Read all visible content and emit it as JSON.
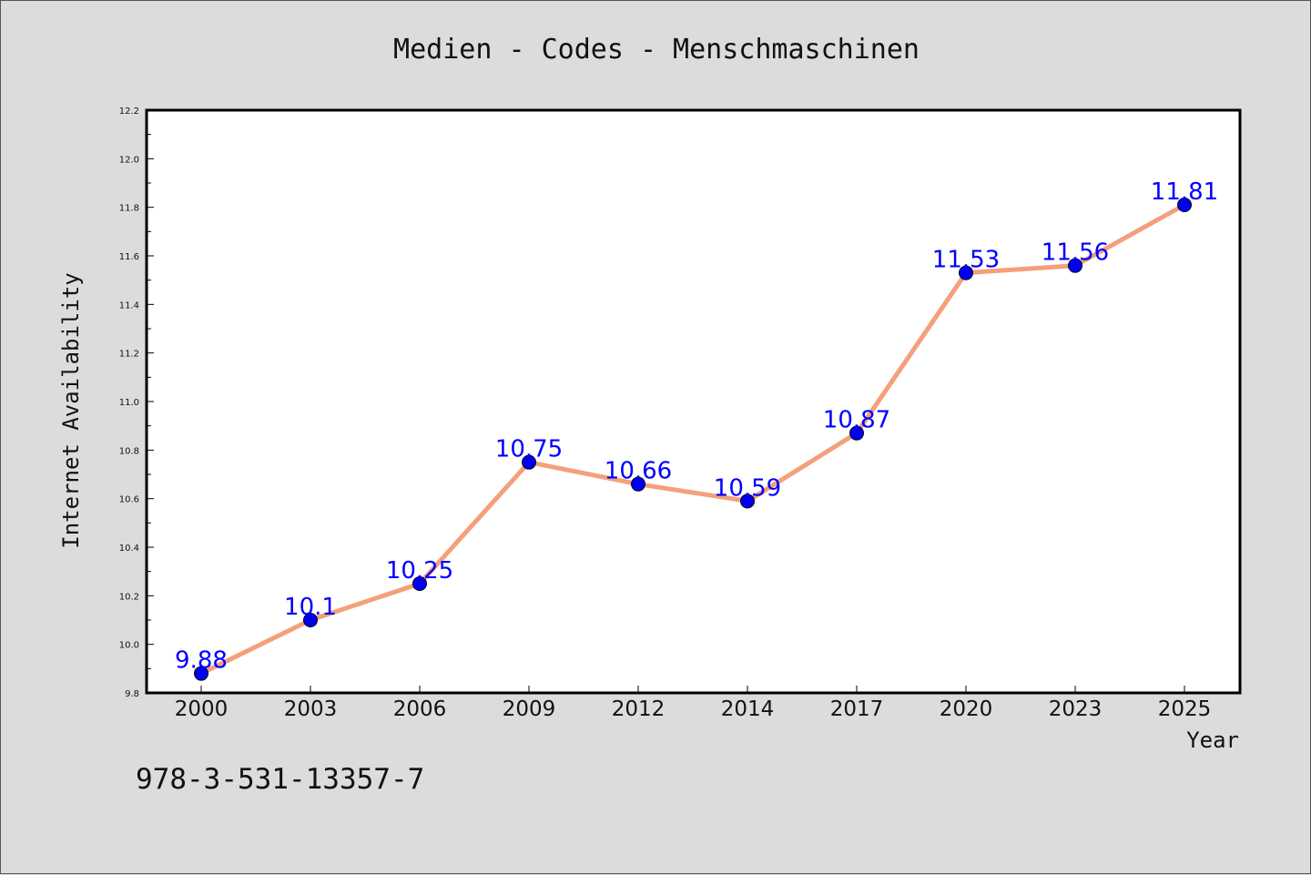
{
  "chart_data": {
    "type": "line",
    "title": "Medien - Codes - Menschmaschinen",
    "xlabel": "Year",
    "ylabel": "Internet Availability",
    "categories": [
      "2000",
      "2003",
      "2006",
      "2009",
      "2012",
      "2014",
      "2017",
      "2020",
      "2023",
      "2025"
    ],
    "values": [
      9.88,
      10.1,
      10.25,
      10.75,
      10.66,
      10.59,
      10.87,
      11.53,
      11.56,
      11.81
    ],
    "data_labels": [
      "9.88",
      "10.1",
      "10.25",
      "10.75",
      "10.66",
      "10.59",
      "10.87",
      "11.53",
      "11.56",
      "11.81"
    ],
    "ylim": [
      9.8,
      12.2
    ],
    "yticks": [
      "9.8",
      "10.0",
      "10.2",
      "10.4",
      "10.6",
      "10.8",
      "11.0",
      "11.2",
      "11.4",
      "11.6",
      "11.8",
      "12.0",
      "12.2"
    ],
    "grid": false,
    "line_color": "#f4a07c",
    "marker_color": "#0000ee",
    "label_color": "#0000ff"
  },
  "footer": {
    "isbn": "978-3-531-13357-7"
  }
}
